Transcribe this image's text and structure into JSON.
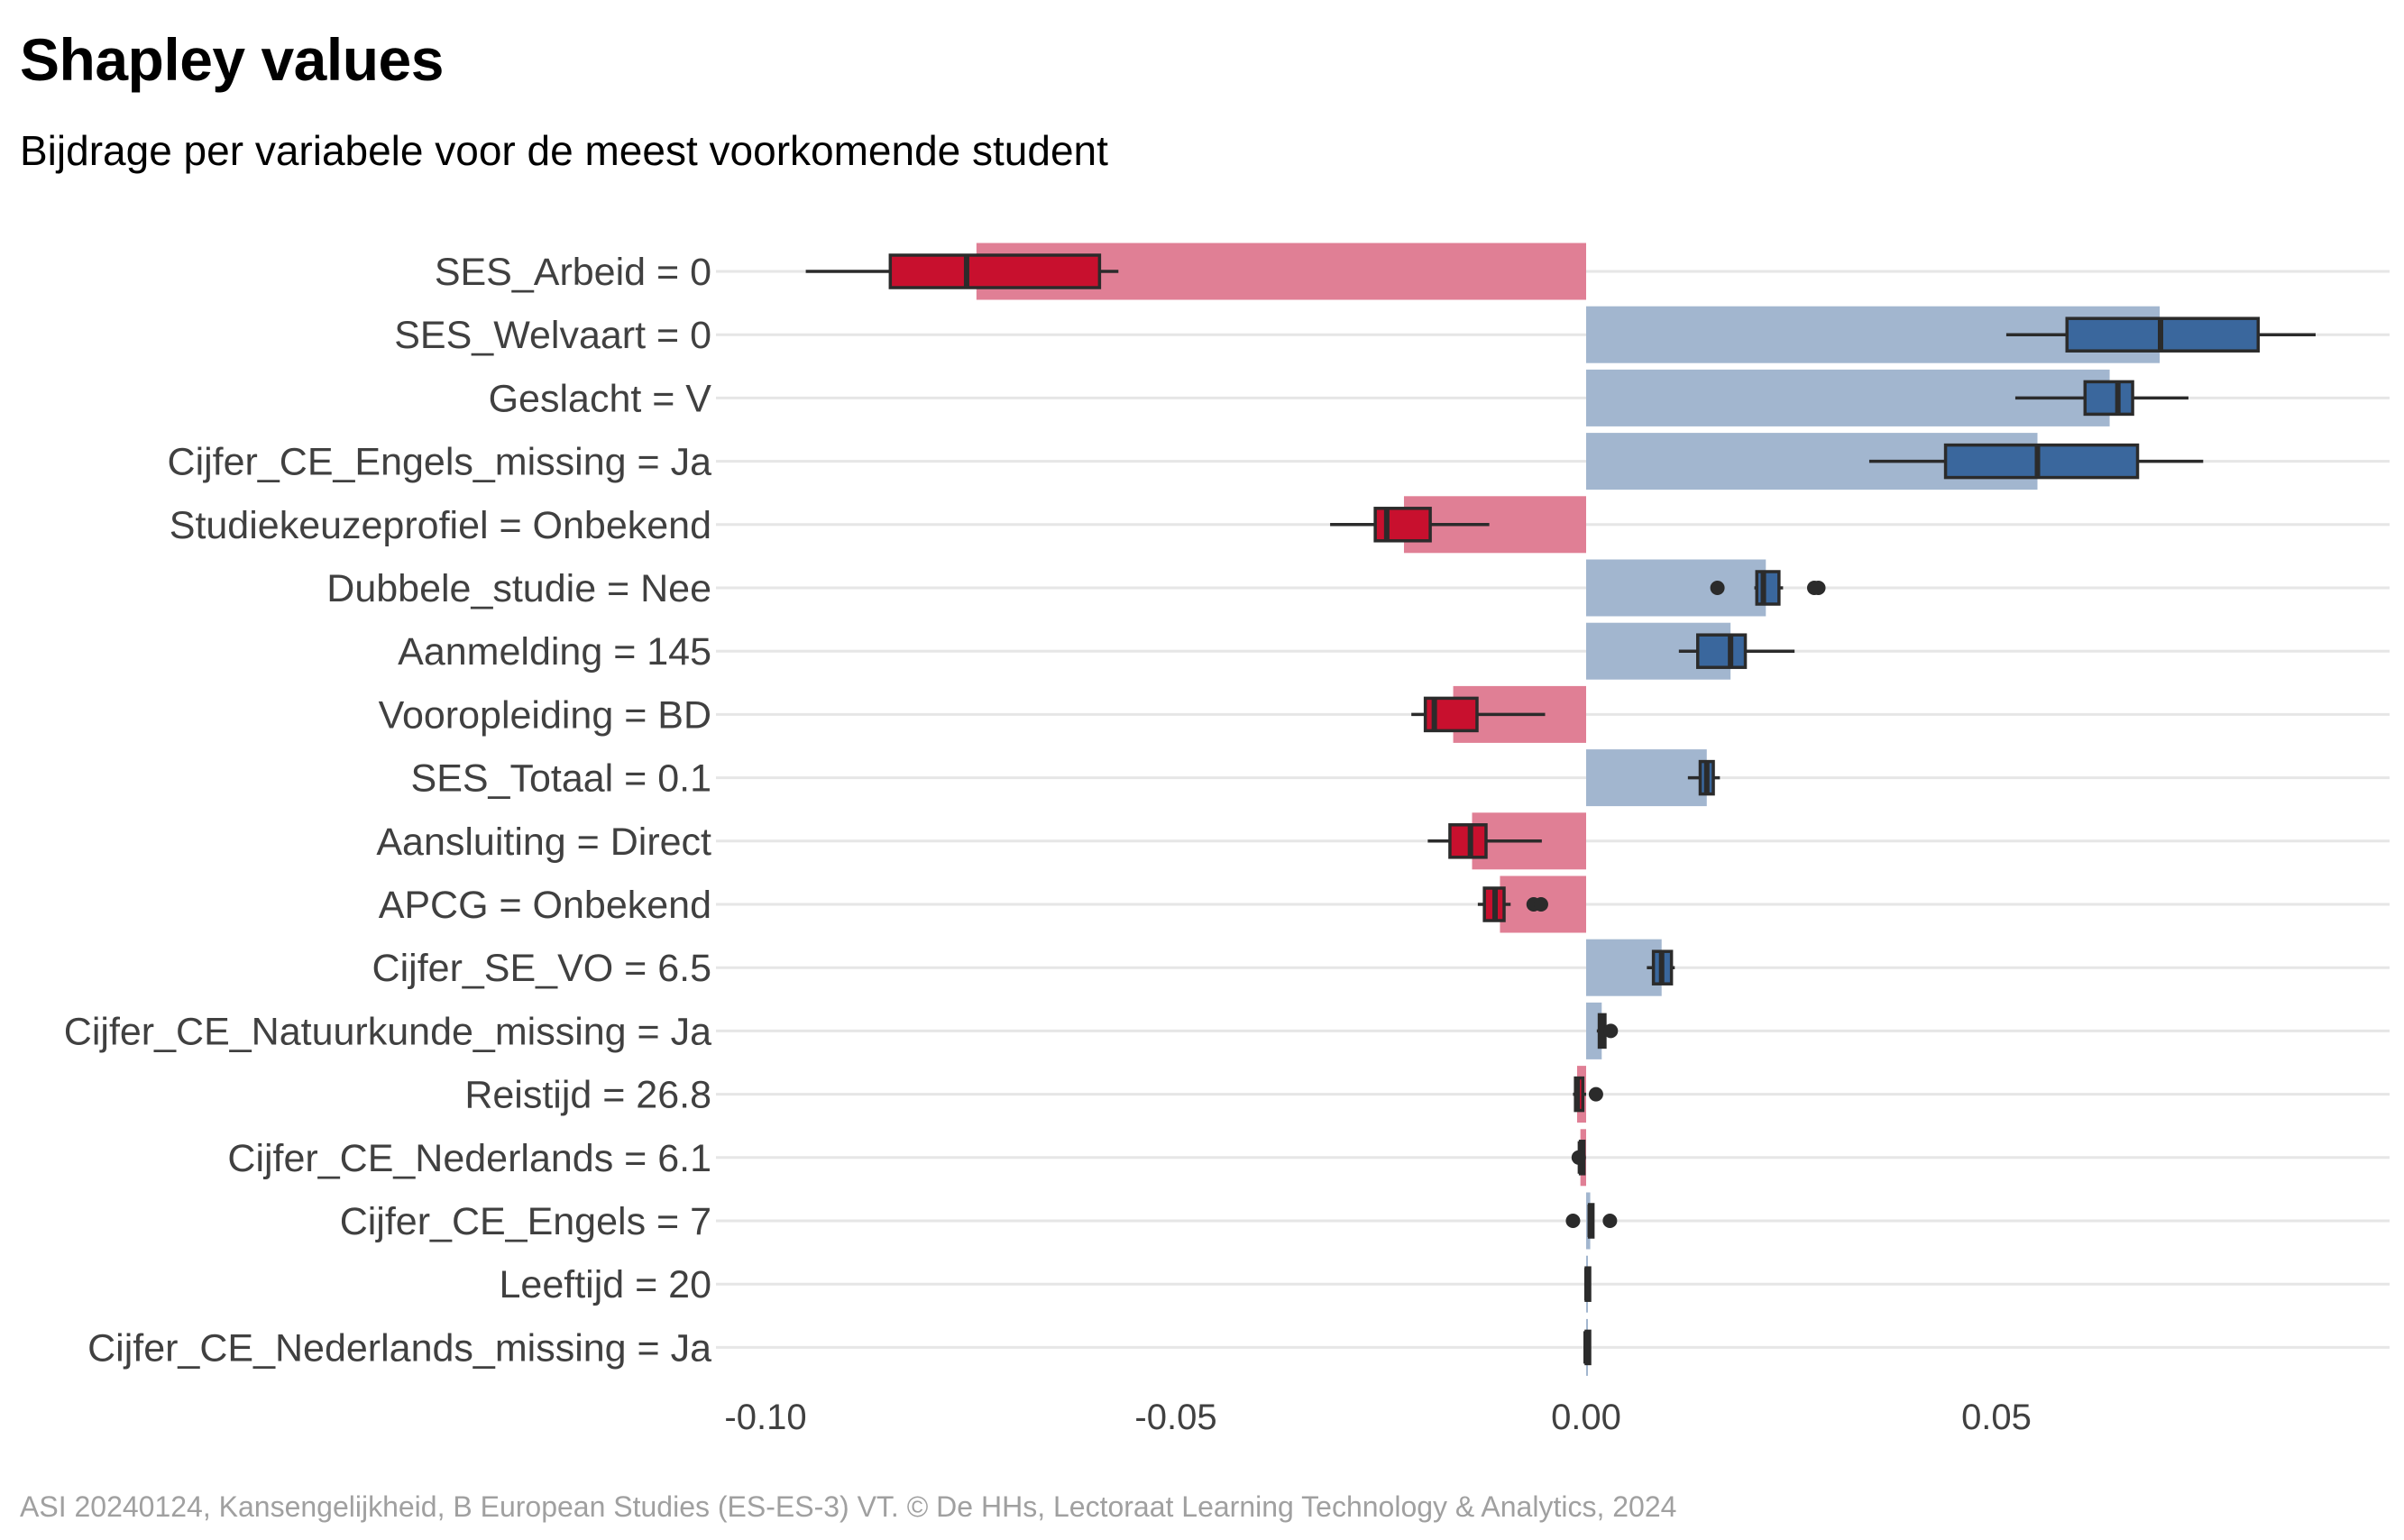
{
  "title": "Shapley values",
  "subtitle": "Bijdrage per variabele voor de meest voorkomende student",
  "caption": "ASI 20240124, Kansengelijkheid, B European Studies (ES-ES-3) VT. © De HHs, Lectoraat Learning Technology & Analytics, 2024",
  "colors": {
    "negative_bar": "#e07f95",
    "positive_bar": "#a2b6cf",
    "negative_box": "#c8102e",
    "positive_box": "#3a679d",
    "whisker": "#2b2b2b",
    "grid": "#e6e6e6"
  },
  "chart_data": {
    "type": "bar",
    "orientation": "horizontal",
    "title": "Shapley values",
    "subtitle": "Bijdrage per variabele voor de meest voorkomende student",
    "xlabel": "",
    "ylabel": "",
    "xlim": [
      -0.1,
      0.097
    ],
    "xticks": [
      -0.1,
      -0.05,
      0.0,
      0.05
    ],
    "xtick_labels": [
      "-0.10",
      "-0.05",
      "0.00",
      "0.05"
    ],
    "grid": "horizontal",
    "categories": [
      "SES_Arbeid = 0",
      "SES_Welvaart = 0",
      "Geslacht = V",
      "Cijfer_CE_Engels_missing = Ja",
      "Studiekeuzeprofiel = Onbekend",
      "Dubbele_studie = Nee",
      "Aanmelding = 145",
      "Vooropleiding = BD",
      "SES_Totaal = 0.1",
      "Aansluiting = Direct",
      "APCG = Onbekend",
      "Cijfer_SE_VO = 6.5",
      "Cijfer_CE_Natuurkunde_missing = Ja",
      "Reistijd = 26.8",
      "Cijfer_CE_Nederlands = 6.1",
      "Cijfer_CE_Engels = 7",
      "Leeftijd = 20",
      "Cijfer_CE_Nederlands_missing = Ja"
    ],
    "values": [
      -0.0743,
      0.0699,
      0.0638,
      0.055,
      -0.0222,
      0.0219,
      0.0176,
      -0.0162,
      0.0147,
      -0.0139,
      -0.0105,
      0.0092,
      0.0019,
      -0.0011,
      -0.0007,
      0.0005,
      0.0001,
      0.0
    ],
    "boxplots": [
      {
        "min": -0.0951,
        "q1": -0.0848,
        "median": -0.0755,
        "q3": -0.0593,
        "max": -0.057,
        "outliers": []
      },
      {
        "min": 0.0512,
        "q1": 0.0586,
        "median": 0.07,
        "q3": 0.0819,
        "max": 0.0889,
        "outliers": []
      },
      {
        "min": 0.0523,
        "q1": 0.0608,
        "median": 0.0648,
        "q3": 0.0666,
        "max": 0.0734,
        "outliers": []
      },
      {
        "min": 0.0345,
        "q1": 0.0438,
        "median": 0.055,
        "q3": 0.0672,
        "max": 0.0752,
        "outliers": []
      },
      {
        "min": -0.0312,
        "q1": -0.0257,
        "median": -0.0243,
        "q3": -0.019,
        "max": -0.0118,
        "outliers": []
      },
      {
        "min": 0.0205,
        "q1": 0.0208,
        "median": 0.0216,
        "q3": 0.0235,
        "max": 0.024,
        "outliers": [
          0.016,
          0.0278,
          0.0283
        ]
      },
      {
        "min": 0.0113,
        "q1": 0.0136,
        "median": 0.0176,
        "q3": 0.0194,
        "max": 0.0254,
        "outliers": []
      },
      {
        "min": -0.0213,
        "q1": -0.0196,
        "median": -0.0185,
        "q3": -0.0133,
        "max": -0.005,
        "outliers": []
      },
      {
        "min": 0.0124,
        "q1": 0.0139,
        "median": 0.0147,
        "q3": 0.0155,
        "max": 0.0163,
        "outliers": []
      },
      {
        "min": -0.0193,
        "q1": -0.0166,
        "median": -0.0141,
        "q3": -0.0122,
        "max": -0.0054,
        "outliers": []
      },
      {
        "min": -0.0132,
        "q1": -0.0124,
        "median": -0.0111,
        "q3": -0.01,
        "max": -0.0092,
        "outliers": [
          -0.0064,
          -0.0055
        ]
      },
      {
        "min": 0.0074,
        "q1": 0.0082,
        "median": 0.0092,
        "q3": 0.0104,
        "max": 0.0108,
        "outliers": []
      },
      {
        "min": 0.0013,
        "q1": 0.0016,
        "median": 0.0019,
        "q3": 0.0023,
        "max": 0.0027,
        "outliers": [
          0.003
        ]
      },
      {
        "min": -0.0016,
        "q1": -0.0013,
        "median": -0.0011,
        "q3": -0.0004,
        "max": 0.0,
        "outliers": [
          0.0012
        ]
      },
      {
        "min": -0.0008,
        "q1": -0.0007,
        "median": -0.0007,
        "q3": -0.0005,
        "max": -0.0004,
        "outliers": [
          -0.0009
        ]
      },
      {
        "min": 0.0003,
        "q1": 0.0004,
        "median": 0.0005,
        "q3": 0.0006,
        "max": 0.0007,
        "outliers": [
          -0.0016,
          0.0029
        ]
      },
      {
        "min": -0.0001,
        "q1": 0.0,
        "median": 0.0001,
        "q3": 0.0002,
        "max": 0.0003,
        "outliers": []
      },
      {
        "min": -0.0001,
        "q1": 0.0,
        "median": 0.0,
        "q3": 0.0,
        "max": 0.0001,
        "outliers": []
      }
    ]
  }
}
